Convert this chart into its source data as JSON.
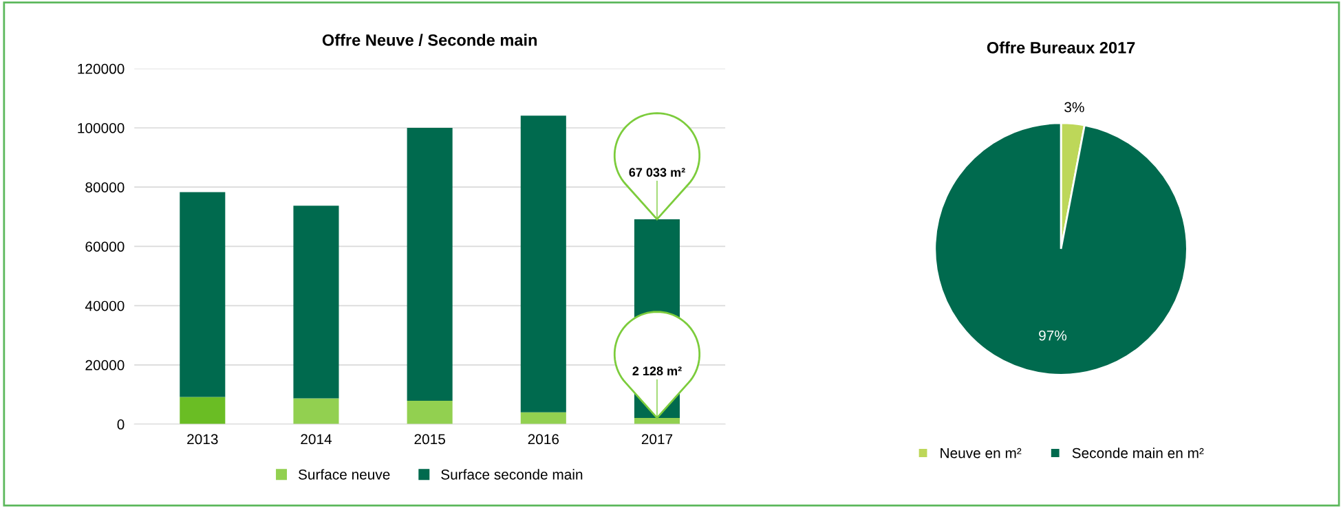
{
  "chart_data": [
    {
      "type": "bar",
      "title": "Offre Neuve / Seconde main",
      "categories": [
        "2013",
        "2014",
        "2015",
        "2016",
        "2017"
      ],
      "stacked": true,
      "series": [
        {
          "name": "Surface neuve",
          "color": "#92d050",
          "colors": [
            "#6abd24",
            "#92d050",
            "#92d050",
            "#92d050",
            "#92d050"
          ],
          "values": [
            9200,
            8700,
            7900,
            4000,
            2128
          ]
        },
        {
          "name": "Surface seconde main",
          "color": "#006a4e",
          "values": [
            69100,
            65000,
            92100,
            100100,
            67033
          ]
        }
      ],
      "ylim": [
        0,
        120000
      ],
      "yticks": [
        0,
        20000,
        40000,
        60000,
        80000,
        100000,
        120000
      ],
      "grid": "y",
      "legend": "bottom",
      "annotations": [
        {
          "text": "67 033 m²",
          "x": "2017",
          "y": 69161
        },
        {
          "text": "2 128 m²",
          "x": "2017",
          "y": 2128
        }
      ]
    },
    {
      "type": "pie",
      "title": "Offre Bureaux 2017",
      "categories": [
        "Neuve en m²",
        "Seconde main en m²"
      ],
      "values": [
        3,
        97
      ],
      "colors": [
        "#bdd759",
        "#006a4e"
      ],
      "value_labels": [
        "3%",
        "97%"
      ],
      "legend": "bottom"
    }
  ]
}
